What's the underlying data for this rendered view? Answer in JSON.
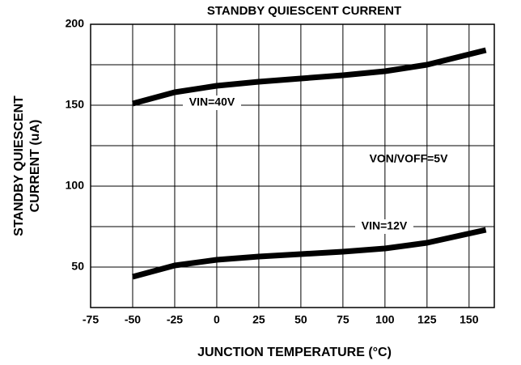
{
  "chart_data": {
    "type": "line",
    "title": "STANDBY QUIESCENT CURRENT",
    "x_label": "JUNCTION TEMPERATURE (°C)",
    "y_label": [
      "STANDBY QUIESCENT",
      "CURRENT (uA)"
    ],
    "annotations": [
      "VON/VOFF=5V"
    ],
    "x": [
      -50,
      -25,
      0,
      25,
      50,
      75,
      100,
      125,
      160
    ],
    "series": [
      {
        "name": "VIN=40V",
        "color": "#000000",
        "values": [
          151,
          158,
          162,
          164.5,
          166.5,
          168.5,
          171,
          175,
          184
        ]
      },
      {
        "name": "VIN=12V",
        "color": "#000000",
        "values": [
          44,
          51,
          54.5,
          56.5,
          58,
          59.5,
          61.5,
          65,
          73
        ]
      }
    ],
    "xlim": [
      -75,
      165
    ],
    "ylim": [
      25,
      200
    ],
    "xticks": [
      -75,
      -50,
      -25,
      0,
      25,
      50,
      75,
      100,
      125,
      150
    ],
    "yticks": [
      50,
      100,
      150,
      200
    ],
    "yminor_ticks": [
      75,
      125,
      175
    ],
    "grid": true
  }
}
